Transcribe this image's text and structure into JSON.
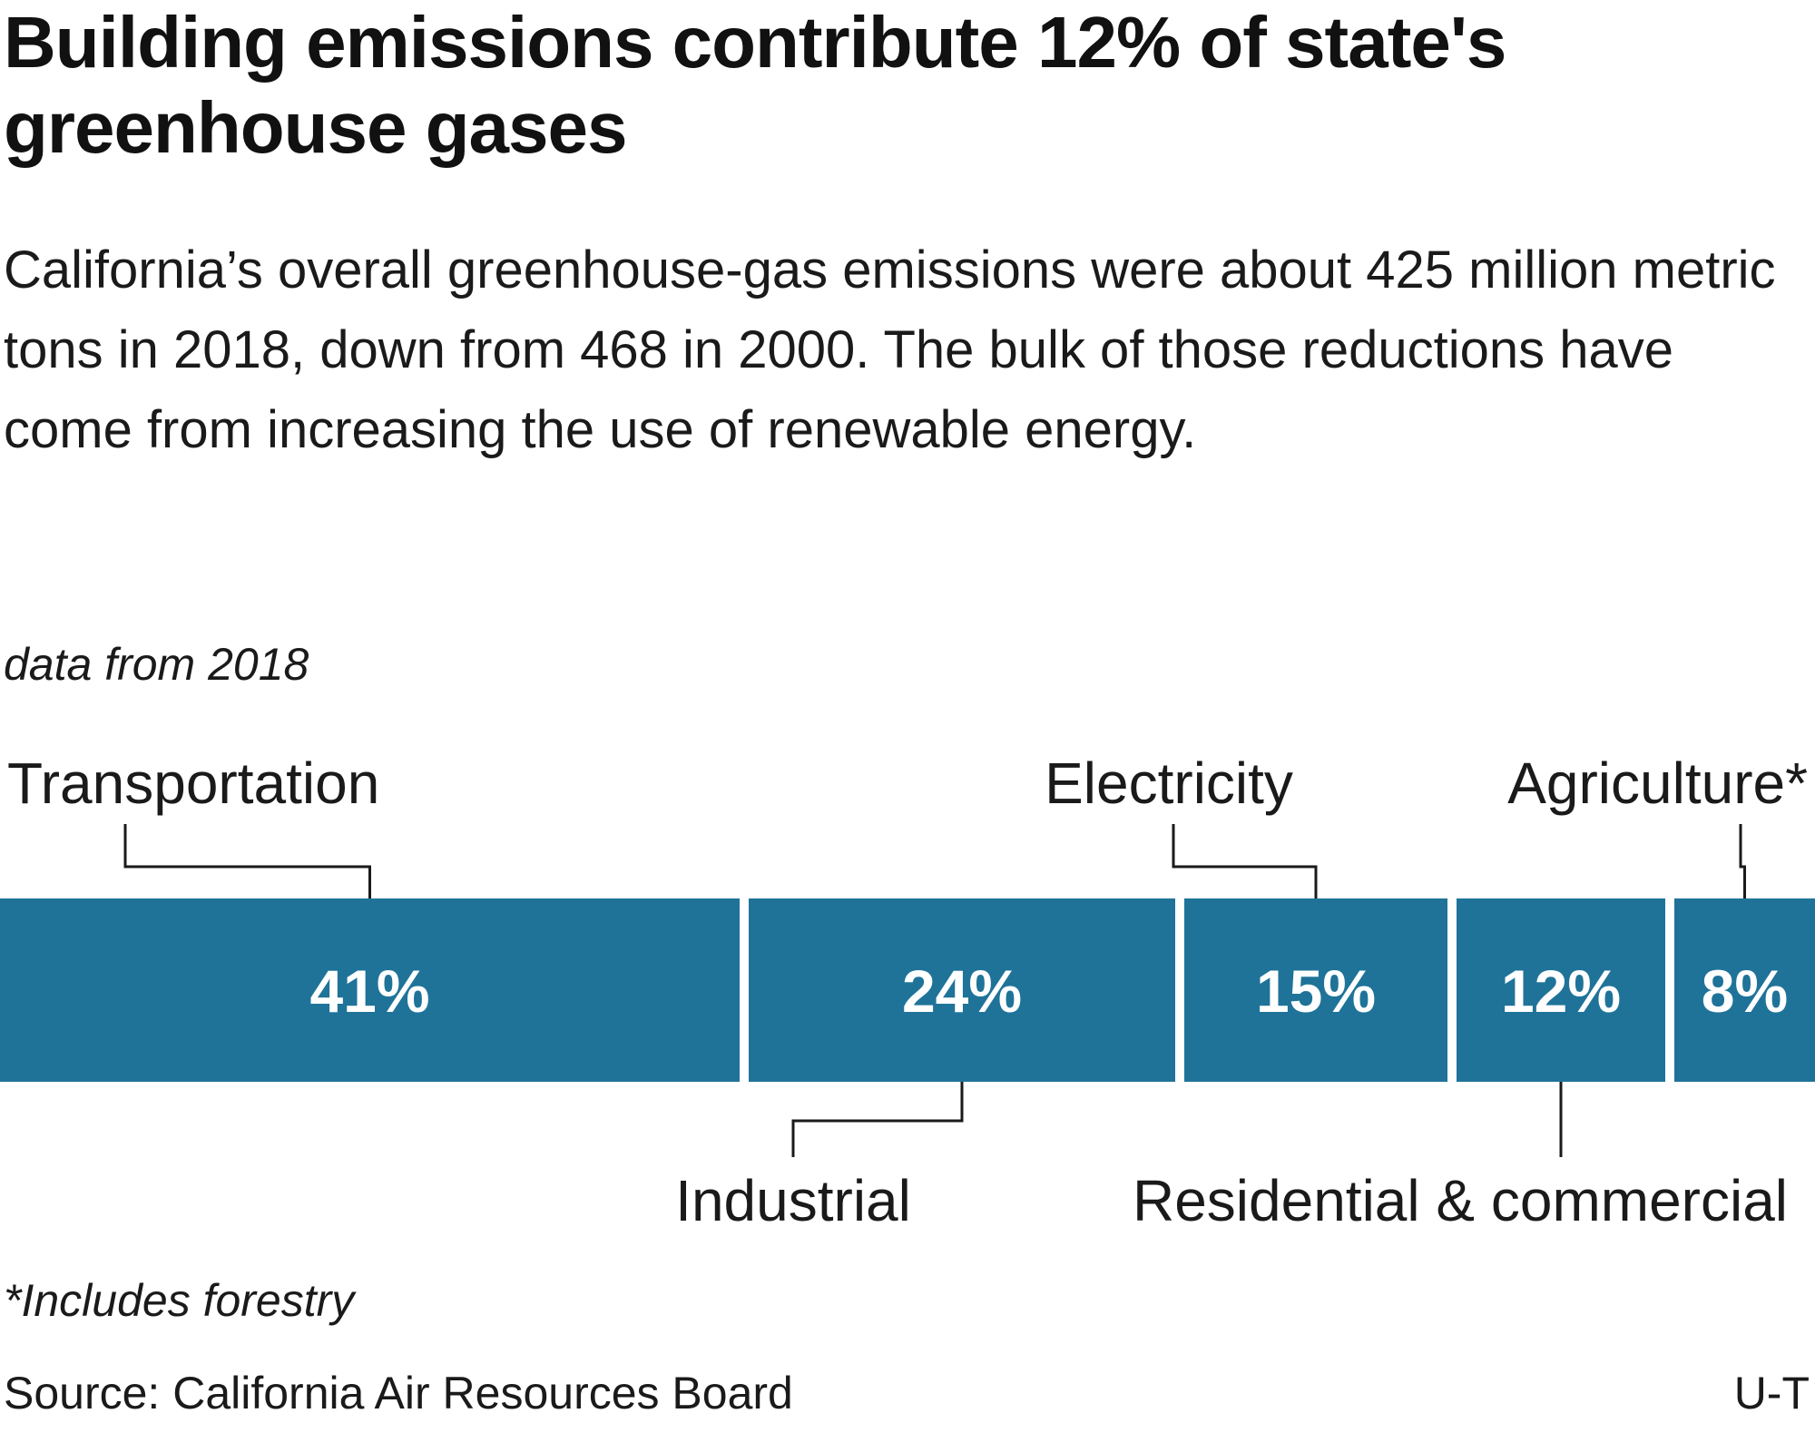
{
  "header": {
    "title": "Building emissions contribute 12% of state's greenhouse gases",
    "subtitle": "California’s overall greenhouse-gas emissions were about 425 million metric tons in 2018, down from 468 in 2000. The bulk of those reductions have come from increasing the use of renewable energy.",
    "note": "data from 2018"
  },
  "footer": {
    "footnote": "*Includes forestry",
    "source": "Source: California Air Resources Board",
    "credit": "U-T"
  },
  "colors": {
    "bar": "#1f7399",
    "bar_label": "#ffffff",
    "leader": "#1a1a1a",
    "text": "#1a1a1a"
  },
  "chart_data": {
    "type": "bar",
    "orientation": "horizontal-stacked",
    "unit": "%",
    "title": "",
    "xlabel": "",
    "ylabel": "",
    "categories": [
      "Transportation",
      "Industrial",
      "Electricity",
      "Residential & commercial",
      "Agriculture*"
    ],
    "values": [
      41,
      24,
      15,
      12,
      8
    ],
    "value_labels": [
      "41%",
      "24%",
      "15%",
      "12%",
      "8%"
    ],
    "label_position": [
      "above",
      "below",
      "above",
      "below",
      "above"
    ],
    "xlim": [
      0,
      100
    ],
    "grid": false,
    "legend": "none"
  }
}
